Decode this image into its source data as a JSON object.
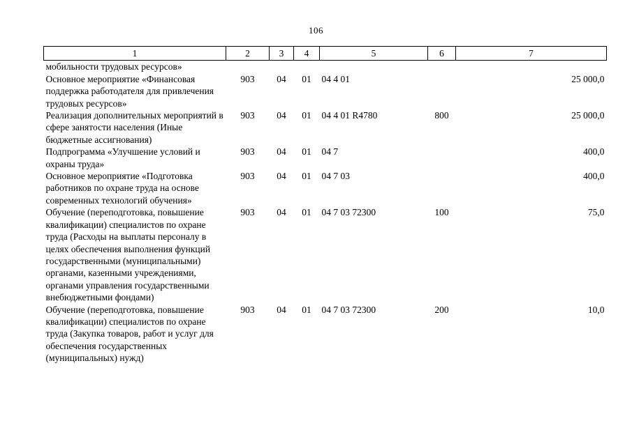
{
  "page": {
    "number": "106"
  },
  "table": {
    "header": [
      "1",
      "2",
      "3",
      "4",
      "5",
      "6",
      "7"
    ],
    "rows": [
      {
        "cells": [
          "мобильности трудовых ресурсов»",
          "",
          "",
          "",
          "",
          "",
          ""
        ]
      },
      {
        "cells": [
          "Основное мероприятие «Финансовая поддержка работодателя для привлечения трудовых ресурсов»",
          "903",
          "04",
          "01",
          "04 4 01",
          "",
          "25 000,0"
        ]
      },
      {
        "cells": [
          "Реализация дополнительных мероприятий в сфере занятости населения (Иные бюджетные ассигнования)",
          "903",
          "04",
          "01",
          "04 4 01 R4780",
          "800",
          "25 000,0"
        ]
      },
      {
        "cells": [
          "Подпрограмма «Улучшение условий и охраны труда»",
          "903",
          "04",
          "01",
          "04 7",
          "",
          "400,0"
        ]
      },
      {
        "cells": [
          "Основное мероприятие «Подготовка работников по охране труда на основе современных технологий обучения»",
          "903",
          "04",
          "01",
          "04 7 03",
          "",
          "400,0"
        ]
      },
      {
        "cells": [
          "Обучение (переподготовка, повышение квалификации) специалистов по охране труда (Расходы на выплаты персоналу в целях обеспечения выполнения функций государственными (муниципальными) органами, казенными учреждениями, органами управления государственными внебюджетными фондами)",
          "903",
          "04",
          "01",
          "04 7 03 72300",
          "100",
          "75,0"
        ]
      },
      {
        "cells": [
          "Обучение (переподготовка, повышение квалификации) специалистов по охране труда (Закупка товаров, работ и услуг для обеспечения государственных (муниципальных) нужд)",
          "903",
          "04",
          "01",
          "04 7 03 72300",
          "200",
          "10,0"
        ]
      }
    ]
  }
}
